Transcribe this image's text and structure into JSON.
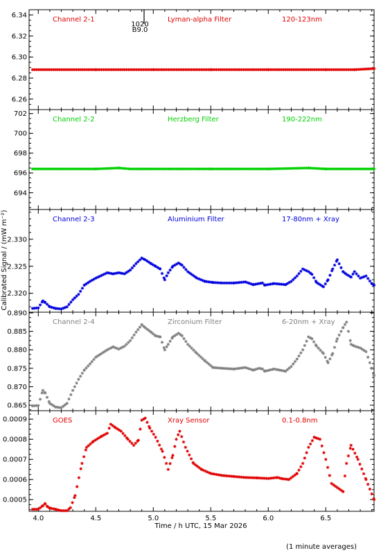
{
  "figure": {
    "xlabel": "Time / h UTC, 15 Mar 2026",
    "ylabel": "Calibrated Signal / (mW m⁻²)",
    "note": "(1 minute averages)",
    "marker_lines": [
      "1020",
      "B9.0"
    ]
  },
  "chart_data": [
    {
      "type": "scatter",
      "labels": [
        "Channel 2-1",
        "Lyman-alpha Filter",
        "120-123nm"
      ],
      "color": "#e00000",
      "xlim": [
        3.92,
        6.92
      ],
      "ylim": [
        6.25,
        6.345
      ],
      "yticks": [
        "6.26",
        "6.28",
        "6.30",
        "6.32",
        "6.34"
      ],
      "x": [
        3.95,
        4.5,
        5.0,
        5.5,
        6.0,
        6.5,
        6.75,
        6.92
      ],
      "y": [
        6.288,
        6.288,
        6.288,
        6.288,
        6.288,
        6.288,
        6.288,
        6.289
      ]
    },
    {
      "type": "scatter",
      "labels": [
        "Channel 2-2",
        "Herzberg Filter",
        "190-222nm"
      ],
      "color": "#00d000",
      "xlim": [
        3.92,
        6.92
      ],
      "ylim": [
        692.3,
        702.4
      ],
      "yticks": [
        "694",
        "696",
        "698",
        "700",
        "702"
      ],
      "x": [
        3.95,
        4.5,
        4.7,
        4.8,
        5.5,
        6.0,
        6.35,
        6.5,
        6.92
      ],
      "y": [
        696.4,
        696.4,
        696.5,
        696.4,
        696.4,
        696.4,
        696.5,
        696.4,
        696.4
      ]
    },
    {
      "type": "scatter",
      "labels": [
        "Channel 2-3",
        "Aluminium Filter",
        "17-80nm + Xray"
      ],
      "color": "#0000dd",
      "xlim": [
        3.92,
        6.92
      ],
      "ylim": [
        2.3165,
        2.3355
      ],
      "yticks": [
        "2.320",
        "2.325",
        "2.330"
      ],
      "x": [
        3.95,
        4.0,
        4.04,
        4.06,
        4.1,
        4.15,
        4.2,
        4.25,
        4.3,
        4.35,
        4.4,
        4.45,
        4.5,
        4.6,
        4.65,
        4.7,
        4.75,
        4.8,
        4.85,
        4.9,
        4.93,
        4.98,
        5.02,
        5.06,
        5.1,
        5.13,
        5.17,
        5.22,
        5.25,
        5.3,
        5.38,
        5.45,
        5.52,
        5.6,
        5.7,
        5.8,
        5.87,
        5.92,
        5.95,
        5.97,
        6.05,
        6.15,
        6.2,
        6.25,
        6.3,
        6.35,
        6.38,
        6.42,
        6.48,
        6.52,
        6.56,
        6.6,
        6.65,
        6.68,
        6.72,
        6.75,
        6.8,
        6.85,
        6.9,
        6.92
      ],
      "y": [
        2.3172,
        2.3173,
        2.3186,
        2.3183,
        2.3175,
        2.3172,
        2.3171,
        2.3175,
        2.3188,
        2.3198,
        2.3215,
        2.3222,
        2.3228,
        2.3238,
        2.3236,
        2.3238,
        2.3236,
        2.3243,
        2.3255,
        2.3265,
        2.3262,
        2.3255,
        2.325,
        2.3245,
        2.3225,
        2.3238,
        2.325,
        2.3256,
        2.3252,
        2.324,
        2.3228,
        2.3222,
        2.322,
        2.3219,
        2.3219,
        2.3221,
        2.3216,
        2.3218,
        2.3219,
        2.3215,
        2.3218,
        2.3216,
        2.3222,
        2.3232,
        2.3245,
        2.324,
        2.3235,
        2.322,
        2.3212,
        2.3225,
        2.3245,
        2.3262,
        2.324,
        2.3235,
        2.323,
        2.324,
        2.3228,
        2.3232,
        2.3218,
        2.3215
      ]
    },
    {
      "type": "scatter",
      "labels": [
        "Channel 2-4",
        "Zirconium Filter",
        "6-20nm + Xray"
      ],
      "color": "#808080",
      "xlim": [
        3.92,
        6.92
      ],
      "ylim": [
        0.8635,
        0.8902
      ],
      "yticks": [
        "0.865",
        "0.870",
        "0.875",
        "0.880",
        "0.885",
        "0.890"
      ],
      "x": [
        3.95,
        4.0,
        4.04,
        4.06,
        4.1,
        4.15,
        4.2,
        4.25,
        4.3,
        4.35,
        4.4,
        4.45,
        4.5,
        4.6,
        4.65,
        4.7,
        4.75,
        4.8,
        4.85,
        4.9,
        4.93,
        4.98,
        5.02,
        5.06,
        5.1,
        5.13,
        5.17,
        5.22,
        5.25,
        5.3,
        5.38,
        5.45,
        5.52,
        5.6,
        5.7,
        5.8,
        5.87,
        5.92,
        5.95,
        5.97,
        6.05,
        6.15,
        6.2,
        6.25,
        6.3,
        6.35,
        6.38,
        6.42,
        6.48,
        6.52,
        6.56,
        6.6,
        6.65,
        6.68,
        6.72,
        6.75,
        6.8,
        6.85,
        6.9,
        6.92
      ],
      "y": [
        0.8648,
        0.8649,
        0.869,
        0.8683,
        0.8655,
        0.8645,
        0.8643,
        0.8655,
        0.869,
        0.872,
        0.8745,
        0.8762,
        0.878,
        0.88,
        0.8808,
        0.8802,
        0.881,
        0.8825,
        0.8848,
        0.8868,
        0.886,
        0.8848,
        0.8838,
        0.8835,
        0.88,
        0.8815,
        0.8835,
        0.8845,
        0.8838,
        0.8815,
        0.879,
        0.877,
        0.8752,
        0.875,
        0.8748,
        0.8752,
        0.8745,
        0.875,
        0.8748,
        0.8742,
        0.8748,
        0.8742,
        0.8755,
        0.8775,
        0.88,
        0.8835,
        0.883,
        0.881,
        0.879,
        0.8765,
        0.879,
        0.883,
        0.886,
        0.8875,
        0.8815,
        0.881,
        0.8805,
        0.8795,
        0.875,
        0.873
      ]
    },
    {
      "type": "scatter",
      "labels": [
        "GOES",
        "Xray Sensor",
        "0.1-0.8nm"
      ],
      "color": "#e00000",
      "xlim": [
        3.92,
        6.92
      ],
      "ylim": [
        0.000442,
        0.000942
      ],
      "yticks": [
        "0.0005",
        "0.0006",
        "0.0007",
        "0.0008",
        "0.0009"
      ],
      "x": [
        3.95,
        4.0,
        4.04,
        4.06,
        4.08,
        4.1,
        4.15,
        4.2,
        4.25,
        4.28,
        4.32,
        4.38,
        4.42,
        4.48,
        4.55,
        4.6,
        4.63,
        4.67,
        4.72,
        4.78,
        4.83,
        4.87,
        4.9,
        4.93,
        4.97,
        5.02,
        5.08,
        5.13,
        5.17,
        5.2,
        5.23,
        5.28,
        5.35,
        5.42,
        5.5,
        5.6,
        5.7,
        5.8,
        5.9,
        6.0,
        6.08,
        6.12,
        6.18,
        6.25,
        6.3,
        6.35,
        6.4,
        6.45,
        6.5,
        6.55,
        6.6,
        6.65,
        6.68,
        6.72,
        6.78,
        6.85,
        6.92
      ],
      "y": [
        0.000452,
        0.000452,
        0.00047,
        0.00048,
        0.000465,
        0.000458,
        0.000452,
        0.000445,
        0.000445,
        0.00046,
        0.00052,
        0.00068,
        0.00076,
        0.00079,
        0.000815,
        0.00083,
        0.000875,
        0.000858,
        0.00084,
        0.0008,
        0.00077,
        0.000795,
        0.000895,
        0.000905,
        0.000855,
        0.00081,
        0.00074,
        0.00065,
        0.00072,
        0.0008,
        0.00084,
        0.00076,
        0.00068,
        0.00065,
        0.00063,
        0.00062,
        0.000615,
        0.00061,
        0.000608,
        0.000605,
        0.00061,
        0.000604,
        0.0006,
        0.00063,
        0.00068,
        0.00076,
        0.00081,
        0.0008,
        0.0007,
        0.00058,
        0.00056,
        0.00054,
        0.00068,
        0.00077,
        0.0007,
        0.0006,
        0.0005
      ]
    }
  ],
  "xticks": [
    "4.0",
    "4.5",
    "5.0",
    "5.5",
    "6.0",
    "6.5"
  ]
}
